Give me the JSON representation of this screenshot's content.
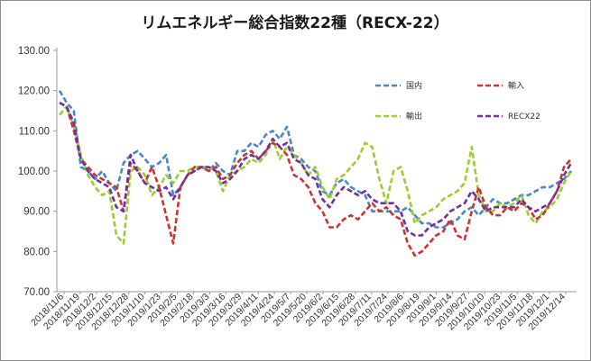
{
  "chart_data": {
    "type": "line",
    "title": "リムエネルギー総合指数22種（RECX-22）",
    "xlabel": "",
    "ylabel": "",
    "ylim": [
      70,
      130
    ],
    "yticks": [
      "70.00",
      "80.00",
      "90.00",
      "100.00",
      "110.00",
      "120.00",
      "130.00"
    ],
    "grid": "none",
    "legend_position": "top-right (inside plot)",
    "x_tick_labels": [
      "2018/11/6",
      "2018/11/19",
      "2018/12/2",
      "2018/12/15",
      "2018/12/28",
      "2019/1/10",
      "2019/1/23",
      "2019/2/5",
      "2019/2/18",
      "2019/3/3",
      "2019/3/16",
      "2019/3/29",
      "2019/4/11",
      "2019/4/24",
      "2019/5/7",
      "2019/5/20",
      "2019/6/2",
      "2019/6/15",
      "2019/6/28",
      "2019/7/11",
      "2019/7/24",
      "2019/8/6",
      "2019/8/19",
      "2019/9/1",
      "2019/9/14",
      "2019/9/27",
      "2019/10/10",
      "2019/10/23",
      "2019/11/5",
      "2019/11/18",
      "2019/12/1",
      "2019/12/14"
    ],
    "series": [
      {
        "name": "国内",
        "color": "#4a86c8",
        "values": [
          120,
          117,
          115,
          101,
          100,
          98,
          100,
          97,
          95,
          102,
          104,
          105,
          103,
          101,
          102,
          104,
          94,
          96,
          99,
          100,
          101,
          100,
          102,
          100,
          99,
          105,
          105,
          107,
          106,
          109,
          110,
          108,
          111,
          104,
          103,
          101,
          100,
          95,
          94,
          97,
          98,
          96,
          95,
          94,
          90,
          90,
          90,
          90,
          90,
          91,
          89,
          87,
          87,
          86,
          86,
          87,
          88,
          90,
          91,
          89,
          91,
          93,
          92,
          92,
          93,
          94,
          94,
          95,
          96,
          96,
          97,
          98,
          100
        ]
      },
      {
        "name": "輸入",
        "color": "#cc3333",
        "values": [
          117,
          116,
          110,
          103,
          101,
          99,
          98,
          97,
          96,
          90,
          102,
          100,
          97,
          101,
          96,
          89,
          82,
          96,
          99,
          101,
          101,
          100,
          101,
          98,
          99,
          102,
          104,
          105,
          103,
          105,
          107,
          106,
          104,
          99,
          98,
          96,
          92,
          90,
          86,
          86,
          88,
          89,
          88,
          90,
          92,
          90,
          91,
          89,
          88,
          82,
          79,
          80,
          82,
          84,
          85,
          88,
          84,
          83,
          90,
          96,
          91,
          89,
          89,
          91,
          90,
          92,
          91,
          88,
          89,
          92,
          95,
          101,
          103
        ]
      },
      {
        "name": "輸出",
        "color": "#9acd32",
        "values": [
          114,
          116,
          111,
          104,
          99,
          96,
          94,
          95,
          84,
          82,
          100,
          101,
          99,
          94,
          96,
          99,
          97,
          100,
          100,
          101,
          101,
          101,
          100,
          95,
          99,
          100,
          101,
          103,
          102,
          104,
          108,
          103,
          106,
          104,
          102,
          99,
          101,
          96,
          93,
          98,
          99,
          101,
          103,
          107,
          106,
          98,
          92,
          100,
          101,
          95,
          87,
          89,
          90,
          91,
          93,
          94,
          95,
          97,
          106,
          94,
          90,
          90,
          92,
          91,
          92,
          94,
          89,
          87,
          90,
          91,
          93,
          97,
          100
        ]
      },
      {
        "name": "RECX22",
        "color": "#7030a0",
        "values": [
          117,
          116,
          112,
          103,
          100,
          98,
          97,
          96,
          91,
          90,
          104,
          100,
          97,
          96,
          95,
          96,
          93,
          96,
          99,
          100,
          101,
          101,
          100,
          97,
          98,
          100,
          103,
          104,
          103,
          105,
          108,
          106,
          107,
          103,
          102,
          99,
          98,
          93,
          91,
          94,
          96,
          95,
          94,
          95,
          93,
          92,
          92,
          92,
          90,
          85,
          84,
          84,
          86,
          87,
          88,
          90,
          91,
          92,
          95,
          93,
          90,
          91,
          91,
          91,
          91,
          93,
          91,
          90,
          91,
          92,
          95,
          99,
          102
        ]
      }
    ]
  }
}
